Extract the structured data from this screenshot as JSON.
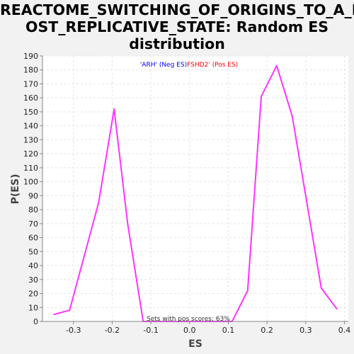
{
  "chart_data": {
    "type": "line",
    "title_lines": [
      "REACTOME_SWITCHING_OF_ORIGINS_TO_A_P",
      "OST_REPLICATIVE_STATE: Random ES",
      "distribution"
    ],
    "xlabel": "ES",
    "ylabel": "P(ES)",
    "xlim": [
      -0.38,
      0.41
    ],
    "ylim": [
      0,
      190
    ],
    "x_ticks": [
      "-0.3",
      "-0.2",
      "-0.1",
      "0.0",
      "0.1",
      "0.2",
      "0.3",
      "0.4"
    ],
    "y_ticks": [
      "0",
      "10",
      "20",
      "30",
      "40",
      "50",
      "60",
      "70",
      "80",
      "90",
      "100",
      "110",
      "120",
      "130",
      "140",
      "150",
      "160",
      "170",
      "180",
      "190"
    ],
    "grid": true,
    "legend": {
      "neg_label": "'ARH' (Neg ES)",
      "pos_label": "FSHD2' (Pos ES)",
      "neg_color": "#0000ff",
      "pos_color": "#ff0000"
    },
    "annotation": "Sets with pos scores: 63%",
    "series": [
      {
        "color": "#ff33ff",
        "x": [
          -0.35,
          -0.31,
          -0.235,
          -0.195,
          -0.16,
          -0.12,
          0.11,
          0.15,
          0.185,
          0.225,
          0.265,
          0.3,
          0.34,
          0.38
        ],
        "y": [
          5,
          8,
          85,
          152,
          70,
          0,
          0,
          22,
          161,
          183,
          147,
          90,
          24,
          9
        ]
      }
    ]
  }
}
